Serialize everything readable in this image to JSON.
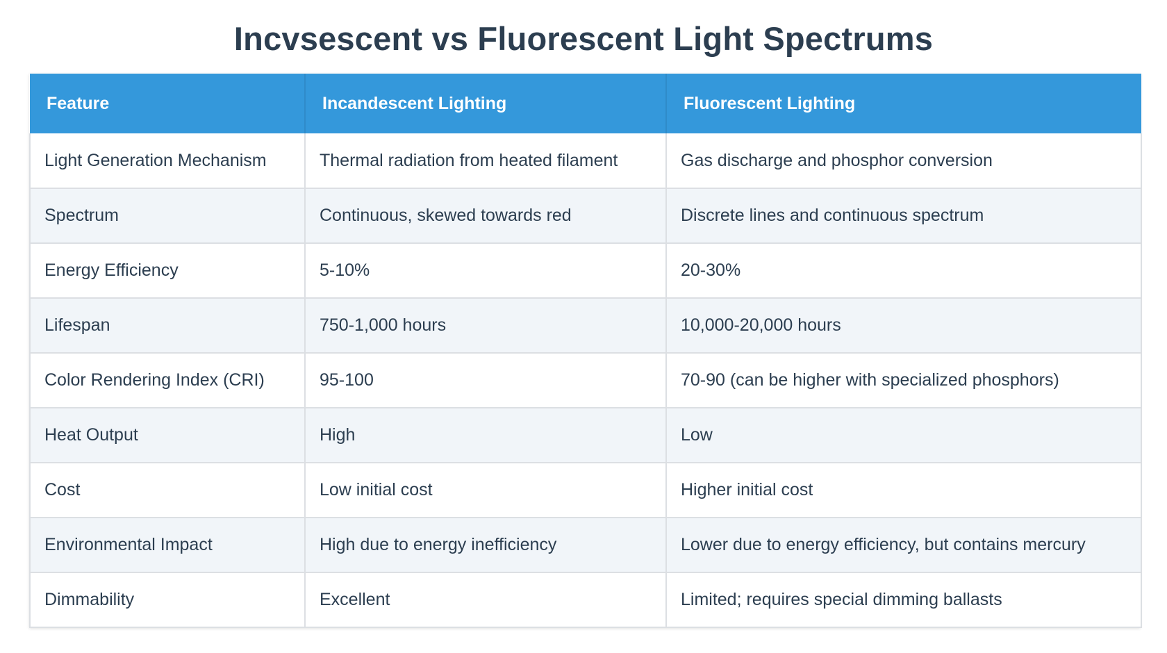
{
  "title": "Incvsescent vs Fluorescent Light Spectrums",
  "table": {
    "headers": [
      "Feature",
      "Incandescent Lighting",
      "Fluorescent Lighting"
    ],
    "rows": [
      [
        "Light Generation Mechanism",
        "Thermal radiation from heated filament",
        "Gas discharge and phosphor conversion"
      ],
      [
        "Spectrum",
        "Continuous, skewed towards red",
        "Discrete lines and continuous spectrum"
      ],
      [
        "Energy Efficiency",
        "5-10%",
        "20-30%"
      ],
      [
        "Lifespan",
        "750-1,000 hours",
        "10,000-20,000 hours"
      ],
      [
        "Color Rendering Index (CRI)",
        "95-100",
        "70-90 (can be higher with specialized phosphors)"
      ],
      [
        "Heat Output",
        "High",
        "Low"
      ],
      [
        "Cost",
        "Low initial cost",
        "Higher initial cost"
      ],
      [
        "Environmental Impact",
        "High due to energy inefficiency",
        "Lower due to energy efficiency, but contains mercury"
      ],
      [
        "Dimmability",
        "Excellent",
        "Limited; requires special dimming ballasts"
      ]
    ]
  },
  "colors": {
    "header_bg": "#3498db",
    "title_text": "#2c3e50",
    "row_alt_bg": "#f1f5f9"
  }
}
